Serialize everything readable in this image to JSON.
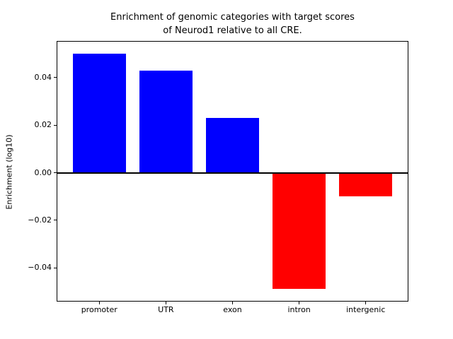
{
  "figure": {
    "background": "#ffffff"
  },
  "chart_data": {
    "type": "bar",
    "title": "Enrichment of genomic categories with target scores\nof Neurod1 relative to all CRE.",
    "xlabel": "",
    "ylabel": "Enrichment (log10)",
    "categories": [
      "promoter",
      "UTR",
      "exon",
      "intron",
      "intergenic"
    ],
    "values": [
      0.05,
      0.043,
      0.023,
      -0.049,
      -0.01
    ],
    "bar_width": 0.8,
    "xlim": [
      -0.64,
      4.64
    ],
    "ylim": [
      -0.0542,
      0.0554
    ],
    "yticks": [
      0.04,
      0.02,
      0.0,
      -0.02,
      -0.04
    ],
    "ytick_labels": [
      "0.04",
      "0.02",
      "0.00",
      "−0.02",
      "−0.04"
    ],
    "positive_color": "#0000ff",
    "negative_color": "#ff0000",
    "zero_line": true,
    "zero_line_color": "#000000",
    "grid": false,
    "legend": null
  }
}
